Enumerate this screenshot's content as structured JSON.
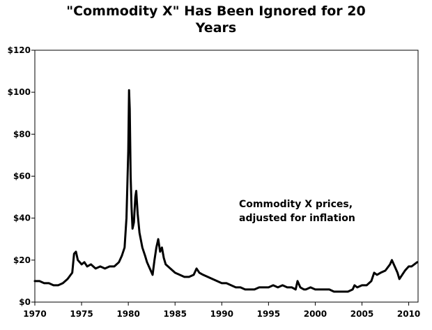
{
  "chart_data": {
    "type": "line",
    "title_lines": [
      "\"Commodity X\" Has Been Ignored for 20",
      "Years"
    ],
    "xlabel": "",
    "ylabel": "",
    "xlim": [
      1970,
      2011
    ],
    "ylim": [
      0,
      120
    ],
    "x_ticks": [
      1970,
      1975,
      1980,
      1985,
      1990,
      1995,
      2000,
      2005,
      2010
    ],
    "y_ticks": [
      0,
      20,
      40,
      60,
      80,
      100,
      120
    ],
    "y_tick_labels": [
      "$0",
      "$20",
      "$40",
      "$60",
      "$80",
      "$100",
      "$120"
    ],
    "grid": false,
    "annotation_lines": [
      "Commodity X prices,",
      "adjusted for inflation"
    ],
    "series": [
      {
        "color": "#000000",
        "x": [
          1970.0,
          1970.5,
          1971.0,
          1971.5,
          1972.0,
          1972.5,
          1973.0,
          1973.5,
          1974.0,
          1974.2,
          1974.4,
          1974.6,
          1974.8,
          1975.0,
          1975.3,
          1975.6,
          1976.0,
          1976.5,
          1977.0,
          1977.5,
          1978.0,
          1978.5,
          1979.0,
          1979.3,
          1979.6,
          1979.8,
          1980.0,
          1980.08,
          1980.15,
          1980.25,
          1980.35,
          1980.45,
          1980.6,
          1980.75,
          1980.85,
          1981.0,
          1981.2,
          1981.5,
          1981.8,
          1982.0,
          1982.3,
          1982.6,
          1982.8,
          1983.0,
          1983.2,
          1983.4,
          1983.6,
          1983.8,
          1984.0,
          1984.5,
          1985.0,
          1985.5,
          1986.0,
          1986.5,
          1987.0,
          1987.3,
          1987.6,
          1988.0,
          1988.5,
          1989.0,
          1989.5,
          1990.0,
          1990.5,
          1991.0,
          1991.5,
          1992.0,
          1992.5,
          1993.0,
          1993.5,
          1994.0,
          1994.5,
          1995.0,
          1995.5,
          1996.0,
          1996.5,
          1997.0,
          1997.5,
          1997.9,
          1998.1,
          1998.4,
          1998.8,
          1999.0,
          1999.5,
          2000.0,
          2000.5,
          2001.0,
          2001.5,
          2002.0,
          2002.5,
          2003.0,
          2003.5,
          2004.0,
          2004.2,
          2004.5,
          2005.0,
          2005.5,
          2006.0,
          2006.3,
          2006.6,
          2007.0,
          2007.5,
          2008.0,
          2008.2,
          2008.5,
          2008.8,
          2009.0,
          2009.3,
          2009.6,
          2010.0,
          2010.3,
          2010.6,
          2010.9
        ],
        "y": [
          10,
          10,
          9,
          9,
          8,
          8,
          9,
          11,
          14,
          23,
          24,
          20,
          19,
          18,
          19,
          17,
          18,
          16,
          17,
          16,
          17,
          17,
          19,
          22,
          26,
          40,
          72,
          101,
          92,
          60,
          45,
          35,
          38,
          50,
          53,
          42,
          33,
          26,
          22,
          19,
          16,
          13,
          20,
          26,
          30,
          24,
          26,
          21,
          18,
          16,
          14,
          13,
          12,
          12,
          13,
          16,
          14,
          13,
          12,
          11,
          10,
          9,
          9,
          8,
          7,
          7,
          6,
          6,
          6,
          7,
          7,
          7,
          8,
          7,
          8,
          7,
          7,
          6,
          10,
          7,
          6,
          6,
          7,
          6,
          6,
          6,
          6,
          5,
          5,
          5,
          5,
          6,
          8,
          7,
          8,
          8,
          10,
          14,
          13,
          14,
          15,
          18,
          20,
          17,
          14,
          11,
          13,
          15,
          17,
          17,
          18,
          19
        ]
      }
    ]
  }
}
